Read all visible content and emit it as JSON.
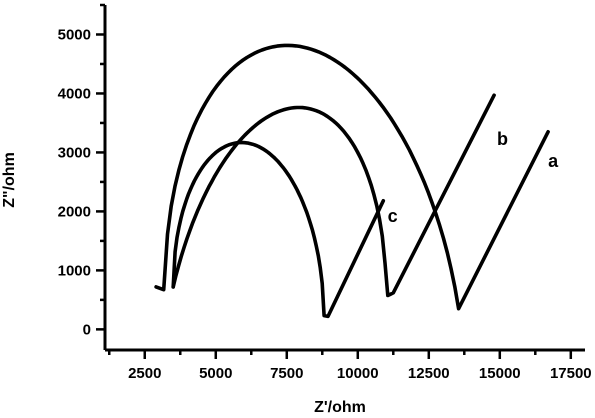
{
  "chart_data": {
    "type": "line",
    "title": "",
    "xlabel": "Z'/ohm",
    "ylabel": "Z\"/ohm",
    "xlim": [
      1100,
      18000
    ],
    "ylim": [
      -350,
      5500
    ],
    "x_ticks": [
      2500,
      5000,
      7500,
      10000,
      12500,
      15000,
      17500
    ],
    "x_tick_labels": [
      "2500",
      "5000",
      "7500",
      "10000",
      "12500",
      "15000",
      "17500"
    ],
    "x_minor_ticks": [
      1250,
      3750,
      6250,
      8750,
      11250,
      13750,
      16250
    ],
    "y_ticks": [
      0,
      1000,
      2000,
      3000,
      4000,
      5000
    ],
    "y_tick_labels": [
      "0",
      "1000",
      "2000",
      "3000",
      "4000",
      "5000"
    ],
    "y_minor_ticks": [
      -500,
      500,
      1500,
      2500,
      3500,
      4500,
      5500
    ],
    "grid": false,
    "legend": "none",
    "series": [
      {
        "name": "a",
        "label_position": [
          16700,
          2750
        ],
        "arc": {
          "x_start": 2900,
          "y_start": 720,
          "x_end": 13550,
          "y_end": 350,
          "center": 8500,
          "radius": 5300,
          "peak": 5000
        },
        "tail": [
          [
            13550,
            350
          ],
          [
            16700,
            3350
          ]
        ]
      },
      {
        "name": "b",
        "label_position": [
          14900,
          3130
        ],
        "arc": {
          "x_start": 3500,
          "y_start": 720,
          "x_end": 11250,
          "y_end": 620,
          "center": 7000,
          "radius": 4000,
          "peak": 4050
        },
        "tail": [
          [
            11250,
            620
          ],
          [
            14800,
            3970
          ]
        ]
      },
      {
        "name": "c",
        "label_position": [
          11050,
          1820
        ],
        "arc": {
          "x_start": 3500,
          "y_start": 720,
          "x_end": 8950,
          "y_end": 220,
          "center": 6150,
          "radius": 2650,
          "peak": 2680
        },
        "tail": [
          [
            8950,
            220
          ],
          [
            10900,
            2180
          ]
        ]
      }
    ]
  }
}
